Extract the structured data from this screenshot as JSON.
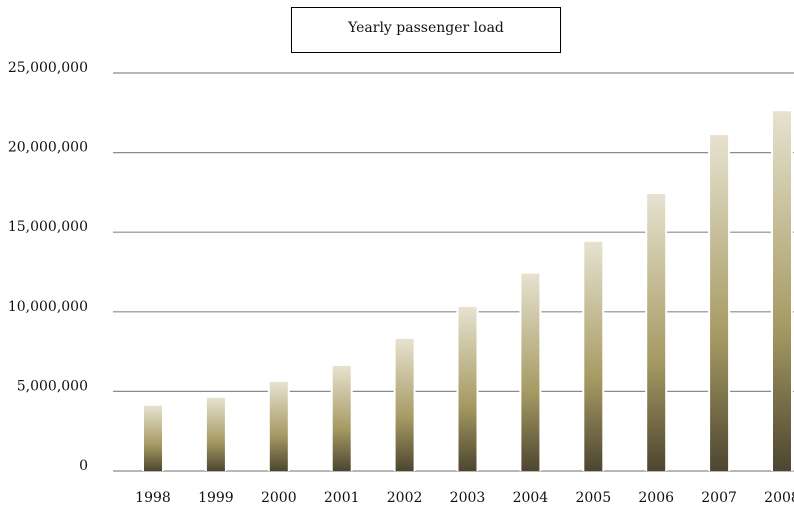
{
  "chart_data": {
    "type": "bar",
    "title": "Yearly passenger load",
    "xlabel": "",
    "ylabel": "",
    "categories": [
      "1998",
      "1999",
      "2000",
      "2001",
      "2002",
      "2003",
      "2004",
      "2005",
      "2006",
      "2007",
      "2008"
    ],
    "values": [
      4100000,
      4600000,
      5600000,
      6600000,
      8300000,
      10300000,
      12400000,
      14400000,
      17400000,
      21100000,
      22600000
    ],
    "ylim": [
      0,
      25000000
    ],
    "yticks": [
      0,
      5000000,
      10000000,
      15000000,
      20000000,
      25000000
    ],
    "ytick_labels": [
      "0",
      "5,000,000",
      "10,000,000",
      "15,000,000",
      "20,000,000",
      "25,000,000"
    ],
    "grid": true,
    "legend": "none",
    "colors": {
      "bar_top": "#e6e2cf",
      "bar_mid": "#a69a63",
      "bar_bottom": "#4d4630",
      "gridline": "#8c8c8c"
    }
  }
}
